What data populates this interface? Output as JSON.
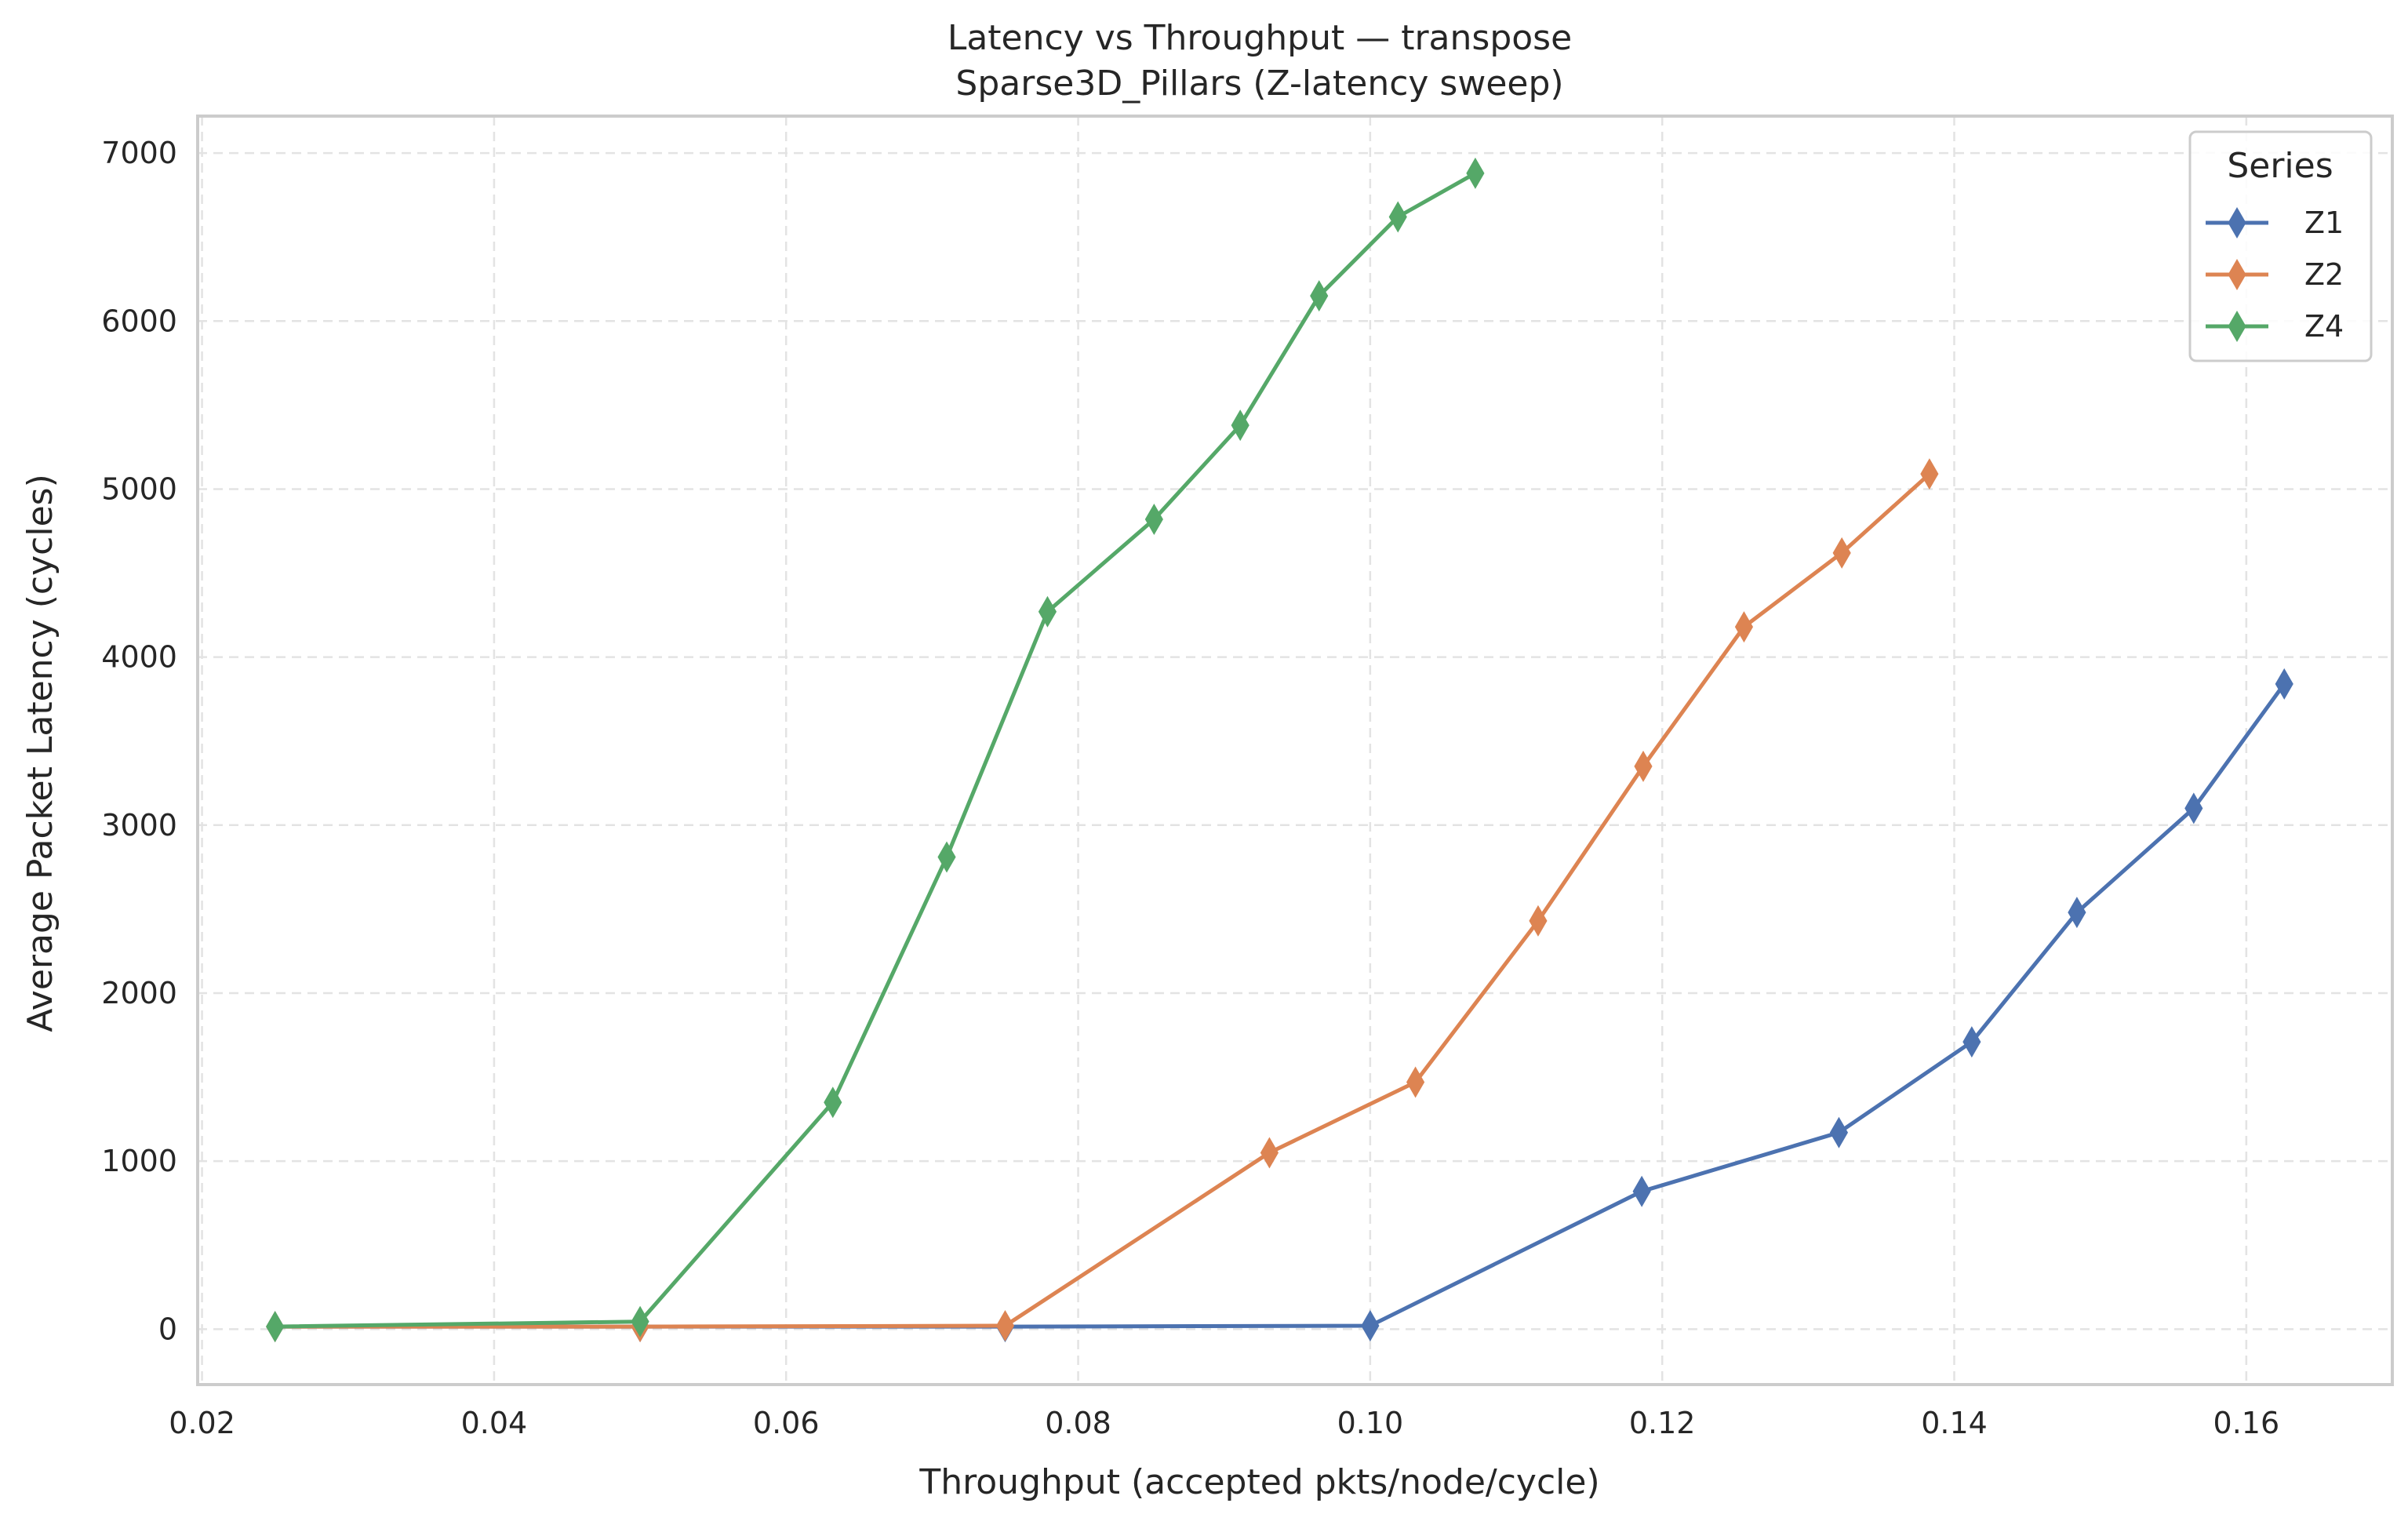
{
  "chart_data": {
    "type": "line",
    "title": "Latency vs Throughput — transpose",
    "subtitle": "Sparse3D_Pillars (Z-latency sweep)",
    "xlabel": "Throughput (accepted pkts/node/cycle)",
    "ylabel": "Average Packet Latency (cycles)",
    "xlim": [
      0.0197,
      0.17
    ],
    "ylim": [
      -330,
      7220
    ],
    "xticks": [
      0.02,
      0.04,
      0.06,
      0.08,
      0.1,
      0.12,
      0.14,
      0.16
    ],
    "xtick_labels": [
      "0.02",
      "0.04",
      "0.06",
      "0.08",
      "0.10",
      "0.12",
      "0.14",
      "0.16"
    ],
    "yticks": [
      0,
      1000,
      2000,
      3000,
      4000,
      5000,
      6000,
      7000
    ],
    "ytick_labels": [
      "0",
      "1000",
      "2000",
      "3000",
      "4000",
      "5000",
      "6000",
      "7000"
    ],
    "grid": true,
    "marker": "thin-diamond",
    "legend": {
      "title": "Series",
      "position": "top-right"
    },
    "series": [
      {
        "name": "Z1",
        "color": "#4c72b0",
        "x": [
          0.025,
          0.05,
          0.075,
          0.1,
          0.1186,
          0.1321,
          0.1412,
          0.1484,
          0.1564,
          0.1626
        ],
        "y": [
          15,
          15,
          15,
          20,
          820,
          1170,
          1710,
          2480,
          3100,
          3840
        ]
      },
      {
        "name": "Z2",
        "color": "#dd8452",
        "x": [
          0.025,
          0.05,
          0.075,
          0.0931,
          0.1031,
          0.1115,
          0.1187,
          0.1256,
          0.1323,
          0.1383
        ],
        "y": [
          15,
          15,
          20,
          1050,
          1470,
          2430,
          3350,
          4180,
          4620,
          5090
        ]
      },
      {
        "name": "Z4",
        "color": "#55a868",
        "x": [
          0.025,
          0.05,
          0.0632,
          0.071,
          0.0779,
          0.0852,
          0.0911,
          0.0965,
          0.1019,
          0.1072
        ],
        "y": [
          15,
          45,
          1350,
          2810,
          4270,
          4820,
          5380,
          6150,
          6620,
          6880
        ]
      }
    ]
  }
}
